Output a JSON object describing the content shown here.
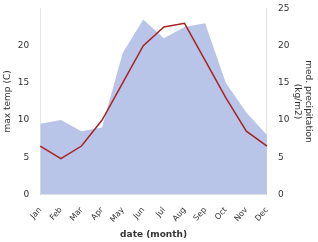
{
  "chart_data": {
    "type": "line",
    "categories": [
      "Jan",
      "Feb",
      "Mar",
      "Apr",
      "May",
      "Jun",
      "Jul",
      "Aug",
      "Sep",
      "Oct",
      "Nov",
      "Dec"
    ],
    "series": [
      {
        "type": "area",
        "color": "#b8c4e8",
        "axis": "y2",
        "values": [
          9.5,
          10.0,
          8.5,
          9.0,
          19.0,
          23.5,
          21.0,
          22.5,
          23.0,
          15.0,
          11.0,
          8.0
        ]
      },
      {
        "type": "line",
        "color": "#aa2222",
        "values": [
          6.5,
          4.8,
          6.5,
          10.0,
          15.0,
          20.0,
          22.5,
          23.0,
          18.0,
          13.0,
          8.5,
          6.5
        ]
      }
    ],
    "x_label": "date (month)",
    "y_label": "max temp (C)",
    "y2_label": "med. precipitation\n(kg/m2)",
    "ylim": [
      0,
      25
    ],
    "yticks": [
      0,
      5,
      10,
      15,
      20
    ],
    "y2lim": [
      0,
      25
    ],
    "y2ticks": [
      0,
      5,
      10,
      15,
      20,
      25
    ],
    "grid": false
  }
}
